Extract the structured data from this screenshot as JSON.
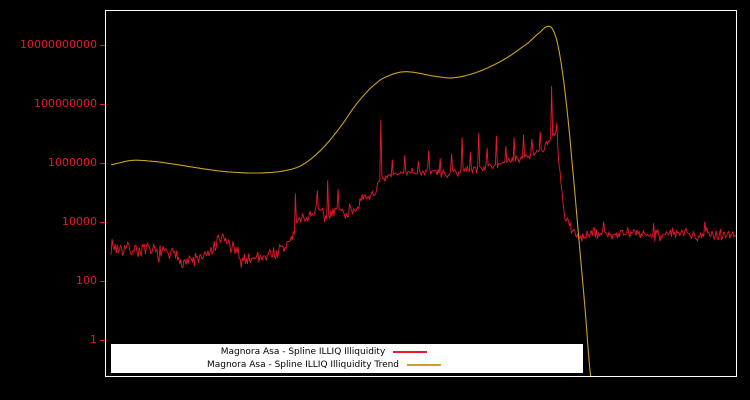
{
  "chart": {
    "background_color": "#000000",
    "frame_color": "#ffffff",
    "axis_text_color": "#e8192c"
  },
  "chart_data": {
    "type": "line",
    "title": "",
    "grid": false,
    "legend_position": "bottom-center-inside",
    "y_axis": {
      "label": "",
      "scale": "log",
      "ticks": [
        1,
        100,
        10000,
        1000000,
        100000000,
        10000000000
      ],
      "tick_labels": [
        "1",
        "100",
        "10000",
        "1000000",
        "100000000",
        "10000000000"
      ]
    },
    "x_axis": {
      "label": "",
      "tick_labels": []
    },
    "ylim_log10": [
      -1.186,
      11.186
    ],
    "series": [
      {
        "name": "Magnora Asa - Spline ILLIQ Illiquidity",
        "color": "#e8192c",
        "style": "noisy",
        "seed": 7,
        "points": 600,
        "domain": [
          0.008,
          1.0
        ],
        "envelope_log10": [
          [
            0.0,
            3.3
          ],
          [
            0.02,
            3.15
          ],
          [
            0.05,
            3.1
          ],
          [
            0.08,
            3.0
          ],
          [
            0.1,
            2.95
          ],
          [
            0.13,
            2.7
          ],
          [
            0.16,
            2.85
          ],
          [
            0.185,
            3.5
          ],
          [
            0.2,
            3.15
          ],
          [
            0.215,
            2.75
          ],
          [
            0.24,
            2.85
          ],
          [
            0.26,
            2.95
          ],
          [
            0.28,
            3.05
          ],
          [
            0.295,
            3.5
          ],
          [
            0.305,
            4.1
          ],
          [
            0.32,
            4.2
          ],
          [
            0.335,
            4.45
          ],
          [
            0.35,
            4.15
          ],
          [
            0.365,
            4.55
          ],
          [
            0.38,
            4.3
          ],
          [
            0.395,
            4.55
          ],
          [
            0.41,
            4.75
          ],
          [
            0.425,
            5.05
          ],
          [
            0.44,
            5.45
          ],
          [
            0.455,
            5.6
          ],
          [
            0.47,
            5.7
          ],
          [
            0.485,
            5.75
          ],
          [
            0.5,
            5.72
          ],
          [
            0.515,
            5.78
          ],
          [
            0.53,
            5.68
          ],
          [
            0.545,
            5.65
          ],
          [
            0.56,
            5.75
          ],
          [
            0.575,
            5.8
          ],
          [
            0.59,
            5.85
          ],
          [
            0.605,
            5.92
          ],
          [
            0.62,
            6.0
          ],
          [
            0.635,
            6.05
          ],
          [
            0.65,
            6.12
          ],
          [
            0.665,
            6.25
          ],
          [
            0.68,
            6.35
          ],
          [
            0.695,
            6.55
          ],
          [
            0.706,
            6.85
          ],
          [
            0.714,
            7.0
          ],
          [
            0.72,
            5.8
          ],
          [
            0.728,
            4.2
          ],
          [
            0.74,
            3.7
          ],
          [
            0.755,
            3.55
          ],
          [
            0.78,
            3.65
          ],
          [
            0.81,
            3.6
          ],
          [
            0.84,
            3.65
          ],
          [
            0.87,
            3.6
          ],
          [
            0.9,
            3.65
          ],
          [
            0.93,
            3.6
          ],
          [
            0.96,
            3.65
          ],
          [
            1.0,
            3.6
          ]
        ],
        "noise_amp_log10": [
          [
            0.0,
            0.34
          ],
          [
            0.29,
            0.34
          ],
          [
            0.31,
            0.3
          ],
          [
            0.43,
            0.28
          ],
          [
            0.46,
            0.16
          ],
          [
            0.71,
            0.16
          ],
          [
            0.73,
            0.26
          ],
          [
            1.0,
            0.26
          ]
        ],
        "spikes_log10": [
          [
            0.3,
            5.0
          ],
          [
            0.336,
            5.1
          ],
          [
            0.352,
            5.45
          ],
          [
            0.368,
            5.15
          ],
          [
            0.436,
            7.5
          ],
          [
            0.455,
            6.15
          ],
          [
            0.475,
            6.3
          ],
          [
            0.495,
            6.1
          ],
          [
            0.512,
            6.45
          ],
          [
            0.53,
            6.2
          ],
          [
            0.548,
            6.35
          ],
          [
            0.565,
            6.9
          ],
          [
            0.578,
            6.4
          ],
          [
            0.592,
            7.05
          ],
          [
            0.605,
            6.55
          ],
          [
            0.62,
            6.95
          ],
          [
            0.634,
            6.6
          ],
          [
            0.648,
            6.9
          ],
          [
            0.662,
            7.0
          ],
          [
            0.676,
            6.85
          ],
          [
            0.69,
            7.1
          ],
          [
            0.708,
            8.65
          ],
          [
            0.716,
            7.4
          ],
          [
            0.79,
            4.05
          ],
          [
            0.87,
            4.0
          ],
          [
            0.95,
            4.05
          ]
        ]
      },
      {
        "name": "Magnora Asa - Spline ILLIQ Illiquidity Trend",
        "color": "#c9a227",
        "style": "smooth",
        "anchors_log10": [
          [
            0.008,
            5.98
          ],
          [
            0.04,
            6.12
          ],
          [
            0.07,
            6.1
          ],
          [
            0.1,
            6.02
          ],
          [
            0.13,
            5.92
          ],
          [
            0.16,
            5.82
          ],
          [
            0.19,
            5.74
          ],
          [
            0.22,
            5.7
          ],
          [
            0.25,
            5.7
          ],
          [
            0.28,
            5.76
          ],
          [
            0.31,
            5.95
          ],
          [
            0.34,
            6.45
          ],
          [
            0.37,
            7.2
          ],
          [
            0.4,
            8.1
          ],
          [
            0.43,
            8.75
          ],
          [
            0.45,
            9.0
          ],
          [
            0.47,
            9.12
          ],
          [
            0.49,
            9.1
          ],
          [
            0.52,
            8.98
          ],
          [
            0.55,
            8.92
          ],
          [
            0.58,
            9.05
          ],
          [
            0.61,
            9.3
          ],
          [
            0.64,
            9.65
          ],
          [
            0.67,
            10.1
          ],
          [
            0.69,
            10.48
          ],
          [
            0.7,
            10.66
          ],
          [
            0.708,
            10.6
          ],
          [
            0.716,
            10.15
          ],
          [
            0.724,
            9.2
          ],
          [
            0.732,
            7.8
          ],
          [
            0.74,
            6.0
          ],
          [
            0.75,
            3.6
          ],
          [
            0.76,
            1.2
          ],
          [
            0.77,
            -1.3
          ]
        ]
      }
    ]
  }
}
